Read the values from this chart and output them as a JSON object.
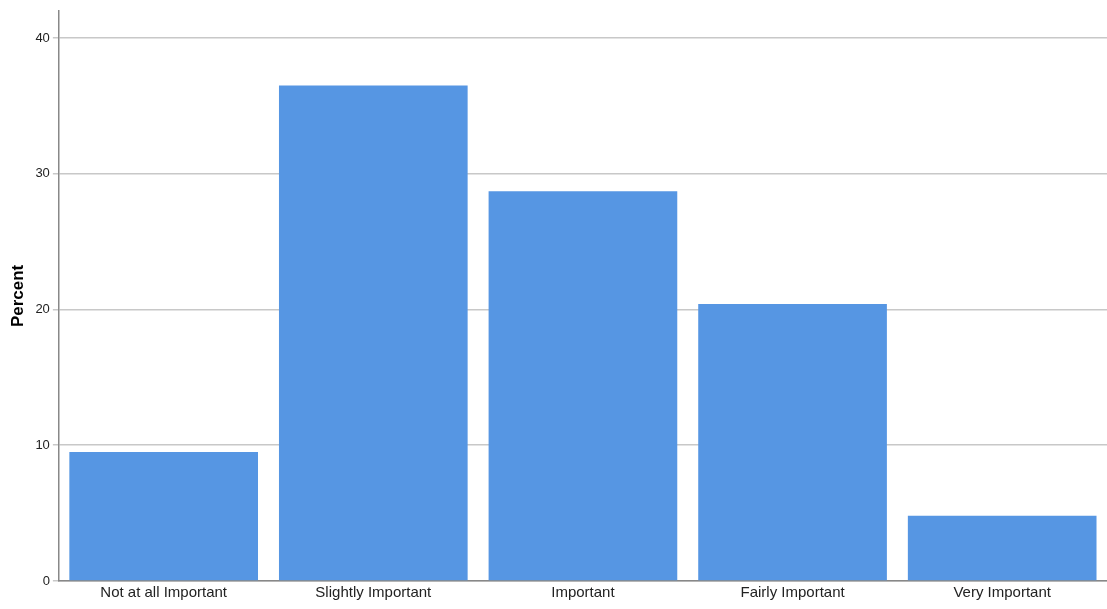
{
  "chart_data": {
    "type": "bar",
    "ylabel": "Percent",
    "categories": [
      "Not at all Important",
      "Slightly Important",
      "Important",
      "Fairly Important",
      "Very Important"
    ],
    "values": [
      9.5,
      36.5,
      28.7,
      20.4,
      4.8
    ],
    "color": "#5696e3",
    "ylim": [
      0,
      42
    ],
    "yticks": [
      0,
      10,
      20,
      30,
      40
    ],
    "grid": "y"
  }
}
